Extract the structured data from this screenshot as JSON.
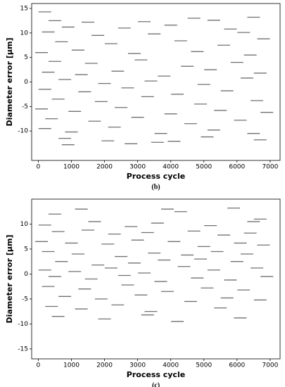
{
  "chart_data": [
    {
      "type": "scatter",
      "caption": "(b)",
      "x_label": "Process cycle",
      "y_label": "Diameter error [μm]",
      "color": "#707070",
      "xlim": [
        -200,
        7300
      ],
      "ylim": [
        -16,
        16
      ],
      "xticks": [
        0,
        1000,
        2000,
        3000,
        4000,
        5000,
        6000,
        7000
      ],
      "yticks": [
        -10,
        -5,
        0,
        5,
        10,
        15
      ],
      "x": [
        200,
        500,
        1500,
        3200,
        4700,
        5300,
        6500,
        900,
        2600,
        4000,
        5800,
        300,
        1800,
        3500,
        6200,
        700,
        2200,
        4300,
        5600,
        6800,
        100,
        1200,
        2900,
        4800,
        6400,
        500,
        1600,
        3100,
        4500,
        6000,
        300,
        1300,
        2400,
        3800,
        5200,
        6700,
        800,
        2000,
        3400,
        5000,
        6300,
        200,
        1400,
        2700,
        4200,
        5700,
        600,
        1900,
        3300,
        4900,
        6600,
        100,
        1100,
        2500,
        4000,
        5500,
        6900,
        400,
        1700,
        3000,
        4600,
        6100,
        200,
        1000,
        2300,
        3700,
        5300,
        6500,
        800,
        2100,
        3600,
        5100,
        6700,
        900,
        2800,
        4100
      ],
      "values": [
        14.3,
        12.5,
        12.2,
        12.3,
        13,
        12.6,
        13.2,
        11.2,
        11,
        11.6,
        10.8,
        10.2,
        9.5,
        9.8,
        10.1,
        8.2,
        7.8,
        8.4,
        7.5,
        8.8,
        6,
        6.5,
        5.8,
        6.2,
        5.5,
        4.2,
        3.8,
        4.5,
        3.2,
        4,
        2,
        1.5,
        2.2,
        1.2,
        2.5,
        1.8,
        0.5,
        -0.3,
        0.2,
        -0.5,
        0.8,
        -1.5,
        -2,
        -1.2,
        -2.5,
        -1.8,
        -3.5,
        -4,
        -3,
        -4.5,
        -3.8,
        -5.5,
        -6,
        -5.2,
        -6.5,
        -5.8,
        -6.2,
        -7.5,
        -8,
        -7.2,
        -8.5,
        -7.8,
        -9.5,
        -10.2,
        -9.2,
        -10.5,
        -9.8,
        -10.5,
        -11.5,
        -12,
        -12.3,
        -11.2,
        -11.8,
        -12.8,
        -12.6,
        -12.1
      ]
    },
    {
      "type": "scatter",
      "caption": "(c)",
      "x_label": "Process cycle",
      "y_label": "Diameter error [μm]",
      "color": "#707070",
      "xlim": [
        -200,
        7300
      ],
      "ylim": [
        -17,
        15
      ],
      "xticks": [
        0,
        1000,
        2000,
        3000,
        4000,
        5000,
        6000,
        7000
      ],
      "yticks": [
        -15,
        -10,
        -5,
        0,
        5,
        10
      ],
      "x": [
        500,
        1300,
        3900,
        4300,
        5900,
        6700,
        200,
        1700,
        2800,
        3600,
        5200,
        6500,
        600,
        1500,
        2300,
        3300,
        4700,
        5600,
        6400,
        100,
        1000,
        2100,
        3000,
        4100,
        5000,
        6100,
        6800,
        300,
        1200,
        2500,
        3500,
        4500,
        5400,
        6300,
        700,
        1800,
        2900,
        3800,
        4900,
        6000,
        200,
        1100,
        2200,
        3200,
        4400,
        5300,
        6600,
        500,
        1600,
        2600,
        3700,
        4800,
        5800,
        6900,
        300,
        1400,
        2700,
        3900,
        5100,
        6200,
        800,
        1900,
        3100,
        4600,
        5700,
        6700,
        400,
        1300,
        2400,
        3400,
        5500,
        600,
        2000,
        3300,
        4200,
        6100
      ],
      "values": [
        12,
        13,
        13,
        12.5,
        13.2,
        11,
        9.8,
        10.5,
        9.5,
        10.2,
        9.7,
        10.5,
        8.5,
        8.8,
        8,
        8.3,
        8.6,
        7.8,
        8.2,
        6.5,
        6.2,
        6,
        6.8,
        6.5,
        5.5,
        6.2,
        5.8,
        4.5,
        4,
        3.5,
        4.2,
        3.8,
        4.5,
        4,
        2.5,
        1.8,
        2.2,
        2.8,
        3,
        2.5,
        0.8,
        0.5,
        1.2,
        0.2,
        1.5,
        0.8,
        1.2,
        -0.5,
        -1,
        -0.3,
        -1.5,
        -0.8,
        -1.2,
        -0.5,
        -2.5,
        -3,
        -2.2,
        -3.5,
        -2.8,
        -3.2,
        -4.5,
        -5,
        -4.2,
        -5.5,
        -4.8,
        -5.2,
        -6.5,
        -7,
        -6.2,
        -7.5,
        -6.8,
        -8.5,
        -9,
        -8.2,
        -9.5,
        -8.8
      ]
    }
  ]
}
